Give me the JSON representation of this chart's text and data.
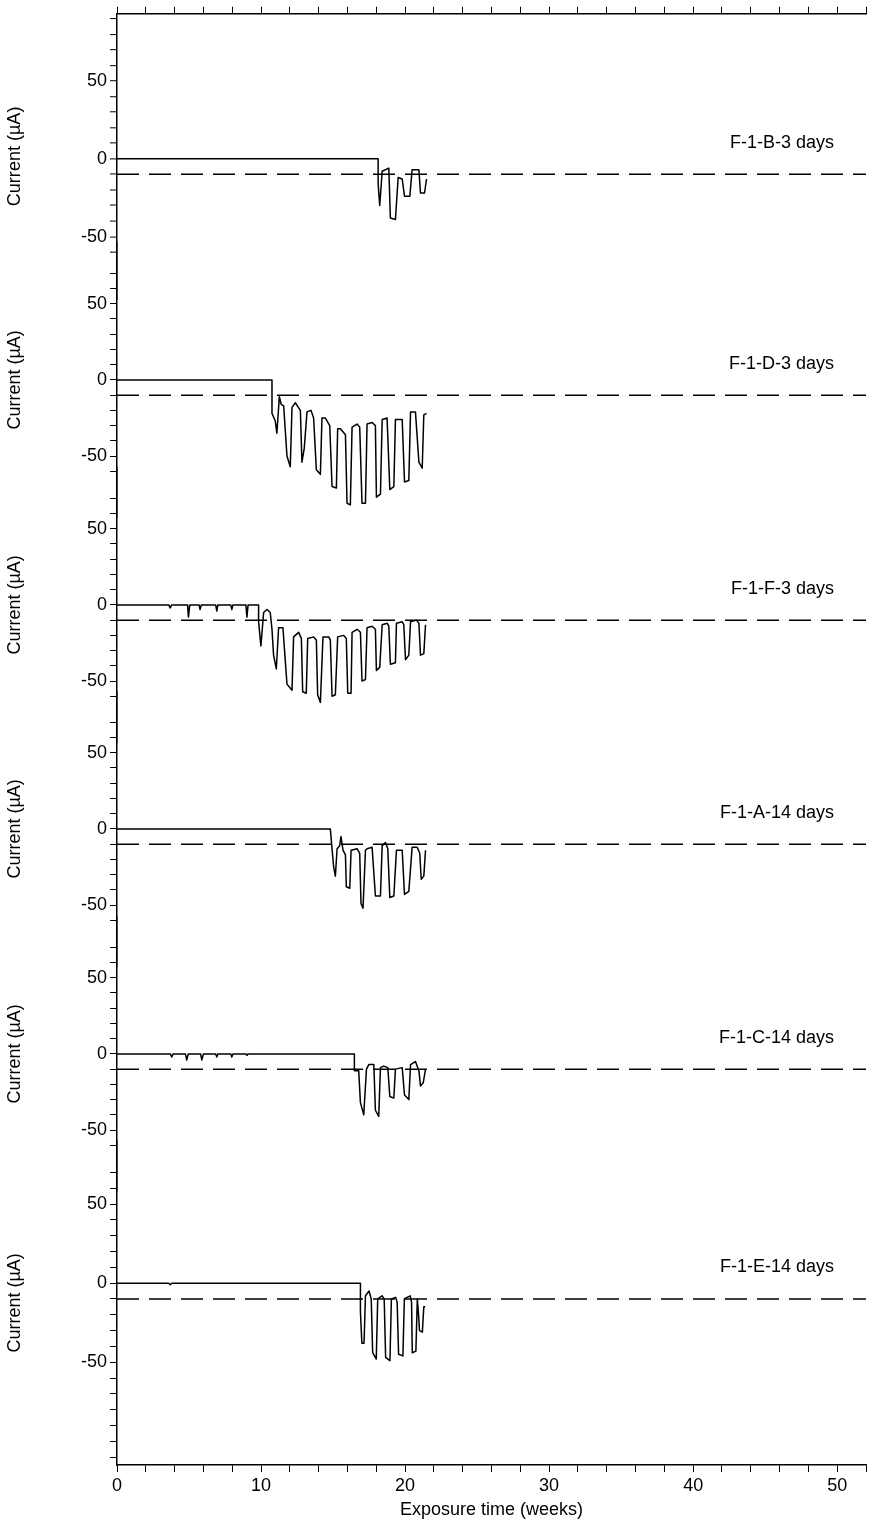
{
  "chart_data": [
    {
      "type": "line",
      "ylabel": "Current (µA)",
      "xlim": [
        0,
        52
      ],
      "xticks": [
        0,
        {
          "value": 2,
          "label": null
        },
        {
          "value": 4,
          "label": null
        },
        {
          "value": 6,
          "label": null
        },
        {
          "value": 8,
          "label": null
        },
        10,
        {
          "value": 12,
          "label": null
        },
        {
          "value": 14,
          "label": null
        },
        {
          "value": 16,
          "label": null
        },
        {
          "value": 18,
          "label": null
        },
        20,
        {
          "value": 22,
          "label": null
        },
        {
          "value": 24,
          "label": null
        },
        {
          "value": 26,
          "label": null
        },
        {
          "value": 28,
          "label": null
        },
        30,
        {
          "value": 32,
          "label": null
        },
        {
          "value": 34,
          "label": null
        },
        {
          "value": 36,
          "label": null
        },
        {
          "value": 38,
          "label": null
        },
        40,
        {
          "value": 42,
          "label": null
        },
        {
          "value": 44,
          "label": null
        },
        {
          "value": 46,
          "label": null
        },
        {
          "value": 48,
          "label": null
        },
        50,
        {
          "value": 52,
          "label": null
        }
      ],
      "ylim": [
        -90,
        93
      ],
      "yticks": [
        {
          "value": 90,
          "label": null
        },
        {
          "value": 80,
          "label": null
        },
        {
          "value": 70,
          "label": null
        },
        {
          "value": 60,
          "label": null
        },
        50,
        {
          "value": 40,
          "label": null
        },
        {
          "value": 30,
          "label": null
        },
        {
          "value": 20,
          "label": null
        },
        {
          "value": 10,
          "label": null
        },
        0,
        {
          "value": -10,
          "label": null
        },
        {
          "value": -20,
          "label": null
        },
        {
          "value": -30,
          "label": null
        },
        {
          "value": -40,
          "label": null
        },
        -50,
        {
          "value": -60,
          "label": null
        }
      ],
      "tick_labels": "y",
      "marker": "none",
      "ref_lines": [
        {
          "axis": "y",
          "value": -10,
          "line_style": "dashed",
          "color": "#000000"
        }
      ],
      "series": [
        {
          "name": "F-1-B-3 days",
          "color": "#000000",
          "x": [
            0,
            18.13,
            18.13,
            18.24,
            18.41,
            18.87,
            18.98,
            19.33,
            19.52,
            19.8,
            19.96,
            20.33,
            20.49,
            20.96,
            21.07,
            21.35,
            21.49
          ],
          "values": [
            0,
            0,
            -16,
            -30,
            -8,
            -6,
            -38,
            -39,
            -12,
            -13,
            -24,
            -24,
            -7,
            -7,
            -22,
            -22,
            -13
          ]
        }
      ]
    },
    {
      "type": "line",
      "ylabel": "Current (µA)",
      "xlim": [
        0,
        52
      ],
      "ylim": [
        -90,
        90
      ],
      "yticks": [
        {
          "value": 70,
          "label": null
        },
        {
          "value": 60,
          "label": null
        },
        50,
        {
          "value": 40,
          "label": null
        },
        {
          "value": 30,
          "label": null
        },
        {
          "value": 20,
          "label": null
        },
        {
          "value": 10,
          "label": null
        },
        0,
        {
          "value": -10,
          "label": null
        },
        {
          "value": -20,
          "label": null
        },
        {
          "value": -30,
          "label": null
        },
        {
          "value": -40,
          "label": null
        },
        -50,
        {
          "value": -60,
          "label": null
        }
      ],
      "tick_labels": "y",
      "marker": "none",
      "ref_lines": [
        {
          "axis": "y",
          "value": -10,
          "line_style": "dashed",
          "color": "#000000"
        }
      ],
      "series": [
        {
          "name": "F-1-D-3 days",
          "color": "#000000",
          "x": [
            0,
            10.76,
            10.76,
            10.99,
            11.1,
            11.27,
            11.4,
            11.57,
            11.8,
            12.03,
            12.15,
            12.38,
            12.73,
            12.84,
            13.0,
            13.19,
            13.47,
            13.65,
            13.84,
            14.12,
            14.23,
            14.46,
            14.77,
            14.93,
            15.23,
            15.32,
            15.51,
            15.86,
            15.97,
            16.2,
            16.32,
            16.67,
            16.85,
            17.01,
            17.25,
            17.36,
            17.71,
            17.94,
            18.01,
            18.29,
            18.41,
            18.75,
            18.94,
            19.22,
            19.33,
            19.8,
            19.96,
            20.26,
            20.38,
            20.72,
            20.96,
            21.19,
            21.3,
            21.49
          ],
          "values": [
            0,
            0,
            -22,
            -27,
            -35,
            -11,
            -16,
            -17,
            -50,
            -57,
            -18,
            -15,
            -20,
            -54,
            -45,
            -21,
            -20,
            -25,
            -59,
            -62,
            -25,
            -25,
            -30,
            -70,
            -71,
            -32,
            -32,
            -36,
            -81,
            -82,
            -31,
            -29,
            -31,
            -81,
            -81,
            -29,
            -28,
            -30,
            -77,
            -75,
            -26,
            -25,
            -72,
            -70,
            -26,
            -26,
            -67,
            -66,
            -21,
            -21,
            -54,
            -58,
            -23,
            -22
          ]
        }
      ]
    },
    {
      "type": "line",
      "ylabel": "Current (µA)",
      "xlim": [
        0,
        52
      ],
      "ylim": [
        -90,
        90
      ],
      "yticks": [
        {
          "value": 70,
          "label": null
        },
        {
          "value": 60,
          "label": null
        },
        50,
        {
          "value": 40,
          "label": null
        },
        {
          "value": 30,
          "label": null
        },
        {
          "value": 20,
          "label": null
        },
        {
          "value": 10,
          "label": null
        },
        0,
        {
          "value": -10,
          "label": null
        },
        {
          "value": -20,
          "label": null
        },
        {
          "value": -30,
          "label": null
        },
        {
          "value": -40,
          "label": null
        },
        -50,
        {
          "value": -60,
          "label": null
        }
      ],
      "tick_labels": "y",
      "marker": "none",
      "ref_lines": [
        {
          "axis": "y",
          "value": -10,
          "line_style": "dashed",
          "color": "#000000"
        }
      ],
      "series": [
        {
          "name": "F-1-F-3 days",
          "color": "#000000",
          "x": [
            0,
            3.6,
            3.69,
            3.8,
            4.9,
            4.96,
            5.05,
            5.7,
            5.77,
            5.85,
            6.85,
            6.93,
            7.0,
            7.9,
            7.97,
            8.05,
            8.95,
            9.02,
            9.1,
            9.83,
            9.83,
            9.99,
            10.18,
            10.41,
            10.64,
            10.76,
            10.87,
            11.06,
            11.22,
            11.52,
            11.8,
            12.15,
            12.26,
            12.61,
            12.8,
            12.89,
            13.14,
            13.24,
            13.65,
            13.84,
            13.93,
            14.12,
            14.3,
            14.7,
            14.81,
            14.93,
            15.16,
            15.32,
            15.74,
            15.92,
            16.02,
            16.25,
            16.32,
            16.67,
            16.9,
            17.01,
            17.25,
            17.36,
            17.71,
            17.94,
            18.01,
            18.24,
            18.41,
            18.75,
            18.87,
            18.98,
            19.33,
            19.4,
            19.8,
            19.91,
            20.03,
            20.26,
            20.38,
            20.79,
            20.96,
            21.07,
            21.3,
            21.42
          ],
          "values": [
            0,
            0,
            -2,
            0,
            0,
            -8,
            0,
            0,
            -3,
            0,
            0,
            -4,
            0,
            0,
            -3,
            0,
            0,
            -8,
            0,
            0,
            -11,
            -27,
            -5,
            -3,
            -5,
            -16,
            -33,
            -42,
            -15,
            -15,
            -52,
            -56,
            -21,
            -18,
            -22,
            -57,
            -58,
            -22,
            -21,
            -23,
            -59,
            -64,
            -21,
            -21,
            -23,
            -60,
            -59,
            -21,
            -20,
            -22,
            -58,
            -58,
            -18,
            -16,
            -18,
            -50,
            -49,
            -15,
            -14,
            -16,
            -43,
            -41,
            -13,
            -12,
            -14,
            -39,
            -38,
            -12,
            -11,
            -13,
            -36,
            -33,
            -11,
            -10,
            -12,
            -33,
            -32,
            -13
          ]
        }
      ]
    },
    {
      "type": "line",
      "ylabel": "Current (µA)",
      "xlim": [
        0,
        52
      ],
      "ylim": [
        -90,
        90
      ],
      "yticks": [
        {
          "value": 70,
          "label": null
        },
        {
          "value": 60,
          "label": null
        },
        50,
        {
          "value": 40,
          "label": null
        },
        {
          "value": 30,
          "label": null
        },
        {
          "value": 20,
          "label": null
        },
        {
          "value": 10,
          "label": null
        },
        0,
        {
          "value": -10,
          "label": null
        },
        {
          "value": -20,
          "label": null
        },
        {
          "value": -30,
          "label": null
        },
        {
          "value": -40,
          "label": null
        },
        -50,
        {
          "value": -60,
          "label": null
        }
      ],
      "tick_labels": "y",
      "marker": "none",
      "ref_lines": [
        {
          "axis": "y",
          "value": -10,
          "line_style": "dashed",
          "color": "#000000"
        }
      ],
      "series": [
        {
          "name": "F-1-A-14 days",
          "color": "#000000",
          "x": [
            0,
            14.81,
            14.93,
            15.04,
            15.16,
            15.28,
            15.46,
            15.55,
            15.69,
            15.86,
            15.92,
            16.16,
            16.25,
            16.67,
            16.85,
            16.94,
            17.08,
            17.25,
            17.36,
            17.71,
            17.94,
            18.29,
            18.41,
            18.64,
            18.8,
            18.94,
            19.22,
            19.4,
            19.8,
            19.96,
            20.26,
            20.49,
            20.84,
            21.02,
            21.12,
            21.3,
            21.42
          ],
          "values": [
            0,
            0,
            -13,
            -25,
            -31,
            -13,
            -11,
            -5,
            -14,
            -17,
            -38,
            -39,
            -14,
            -13,
            -16,
            -49,
            -52,
            -14,
            -13,
            -12,
            -44,
            -44,
            -11,
            -9,
            -13,
            -45,
            -44,
            -14,
            -14,
            -43,
            -41,
            -12,
            -12,
            -16,
            -33,
            -31,
            -14
          ]
        }
      ]
    },
    {
      "type": "line",
      "ylabel": "Current (µA)",
      "xlim": [
        0,
        52
      ],
      "ylim": [
        -90,
        90
      ],
      "yticks": [
        {
          "value": 70,
          "label": null
        },
        {
          "value": 60,
          "label": null
        },
        50,
        {
          "value": 40,
          "label": null
        },
        {
          "value": 30,
          "label": null
        },
        {
          "value": 20,
          "label": null
        },
        {
          "value": 10,
          "label": null
        },
        0,
        {
          "value": -10,
          "label": null
        },
        {
          "value": -20,
          "label": null
        },
        {
          "value": -30,
          "label": null
        },
        {
          "value": -40,
          "label": null
        },
        -50,
        {
          "value": -60,
          "label": null
        }
      ],
      "tick_labels": "y",
      "marker": "none",
      "ref_lines": [
        {
          "axis": "y",
          "value": -10,
          "line_style": "dashed",
          "color": "#000000"
        }
      ],
      "series": [
        {
          "name": "F-1-C-14 days",
          "color": "#000000",
          "x": [
            0,
            3.7,
            3.8,
            3.9,
            4.75,
            4.84,
            4.95,
            5.8,
            5.89,
            6.0,
            6.85,
            6.93,
            7.0,
            7.9,
            7.97,
            8.05,
            8.95,
            9.02,
            9.1,
            16.48,
            16.48,
            16.78,
            16.9,
            17.13,
            17.32,
            17.48,
            17.83,
            17.94,
            18.17,
            18.29,
            18.52,
            18.8,
            18.94,
            19.22,
            19.33,
            19.8,
            19.96,
            20.26,
            20.38,
            20.72,
            20.96,
            21.07,
            21.26,
            21.42
          ],
          "values": [
            0,
            0,
            -2,
            0,
            0,
            -4,
            0,
            0,
            -4,
            0,
            0,
            -2,
            0,
            0,
            -2,
            0,
            0,
            -1,
            0,
            0,
            -11,
            -11,
            -32,
            -40,
            -10,
            -7,
            -7,
            -37,
            -41,
            -9,
            -8,
            -9,
            -28,
            -29,
            -10,
            -9,
            -27,
            -30,
            -7,
            -5,
            -11,
            -21,
            -19,
            -10
          ]
        }
      ]
    },
    {
      "type": "line",
      "ylabel": "Current (µA)",
      "xlabel": "Exposure time (weeks)",
      "xlim": [
        0,
        52
      ],
      "xticks": [
        0,
        {
          "value": 2,
          "label": null
        },
        {
          "value": 4,
          "label": null
        },
        {
          "value": 6,
          "label": null
        },
        {
          "value": 8,
          "label": null
        },
        10,
        {
          "value": 12,
          "label": null
        },
        {
          "value": 14,
          "label": null
        },
        {
          "value": 16,
          "label": null
        },
        {
          "value": 18,
          "label": null
        },
        20,
        {
          "value": 22,
          "label": null
        },
        {
          "value": 24,
          "label": null
        },
        {
          "value": 26,
          "label": null
        },
        {
          "value": 28,
          "label": null
        },
        30,
        {
          "value": 32,
          "label": null
        },
        {
          "value": 34,
          "label": null
        },
        {
          "value": 36,
          "label": null
        },
        {
          "value": 38,
          "label": null
        },
        40,
        {
          "value": 42,
          "label": null
        },
        {
          "value": 44,
          "label": null
        },
        {
          "value": 46,
          "label": null
        },
        {
          "value": 48,
          "label": null
        },
        50,
        {
          "value": 52,
          "label": null
        }
      ],
      "ylim": [
        -115,
        90
      ],
      "yticks": [
        {
          "value": 70,
          "label": null
        },
        {
          "value": 60,
          "label": null
        },
        50,
        {
          "value": 40,
          "label": null
        },
        {
          "value": 30,
          "label": null
        },
        {
          "value": 20,
          "label": null
        },
        {
          "value": 10,
          "label": null
        },
        0,
        {
          "value": -10,
          "label": null
        },
        {
          "value": -20,
          "label": null
        },
        {
          "value": -30,
          "label": null
        },
        {
          "value": -40,
          "label": null
        },
        -50,
        {
          "value": -60,
          "label": null
        },
        {
          "value": -70,
          "label": null
        },
        {
          "value": -80,
          "label": null
        },
        {
          "value": -90,
          "label": null
        },
        {
          "value": -100,
          "label": null
        },
        {
          "value": -110,
          "label": null
        }
      ],
      "marker": "none",
      "ref_lines": [
        {
          "axis": "y",
          "value": -10,
          "line_style": "dashed",
          "color": "#000000"
        }
      ],
      "series": [
        {
          "name": "F-1-E-14 days",
          "color": "#000000",
          "x": [
            0,
            3.6,
            3.7,
            3.8,
            16.9,
            16.9,
            17.0,
            17.15,
            17.25,
            17.5,
            17.65,
            17.75,
            18.0,
            18.1,
            18.4,
            18.55,
            18.65,
            18.95,
            19.05,
            19.35,
            19.45,
            19.55,
            19.85,
            19.95,
            20.35,
            20.45,
            20.5,
            20.75,
            20.85,
            20.95,
            21.0,
            21.2,
            21.3,
            21.4
          ],
          "values": [
            0,
            0,
            -1,
            0,
            0,
            -18,
            -38,
            -38,
            -8,
            -5,
            -10,
            -44,
            -48,
            -10,
            -8,
            -10,
            -47,
            -49,
            -10,
            -9,
            -12,
            -45,
            -46,
            -10,
            -8,
            -12,
            -44,
            -43,
            -10,
            -22,
            -30,
            -31,
            -15,
            -15
          ]
        }
      ]
    }
  ]
}
